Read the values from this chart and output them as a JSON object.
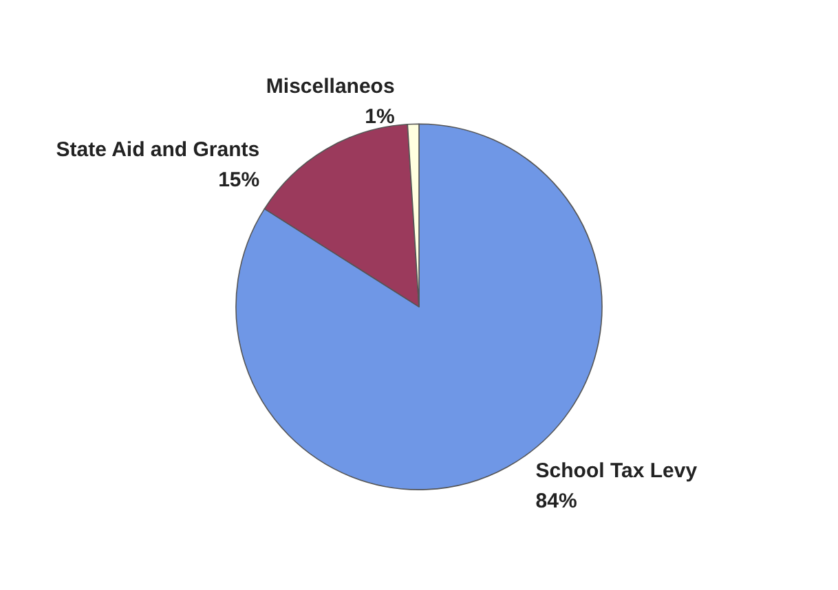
{
  "chart_data": {
    "type": "pie",
    "categories": [
      "School Tax Levy",
      "State Aid and Grants",
      "Miscellaneos"
    ],
    "values": [
      84,
      15,
      1
    ],
    "value_labels": [
      "84%",
      "15%",
      "1%"
    ],
    "colors": [
      "#6f97e6",
      "#9b3a5c",
      "#ffffe0"
    ],
    "legend": false
  }
}
